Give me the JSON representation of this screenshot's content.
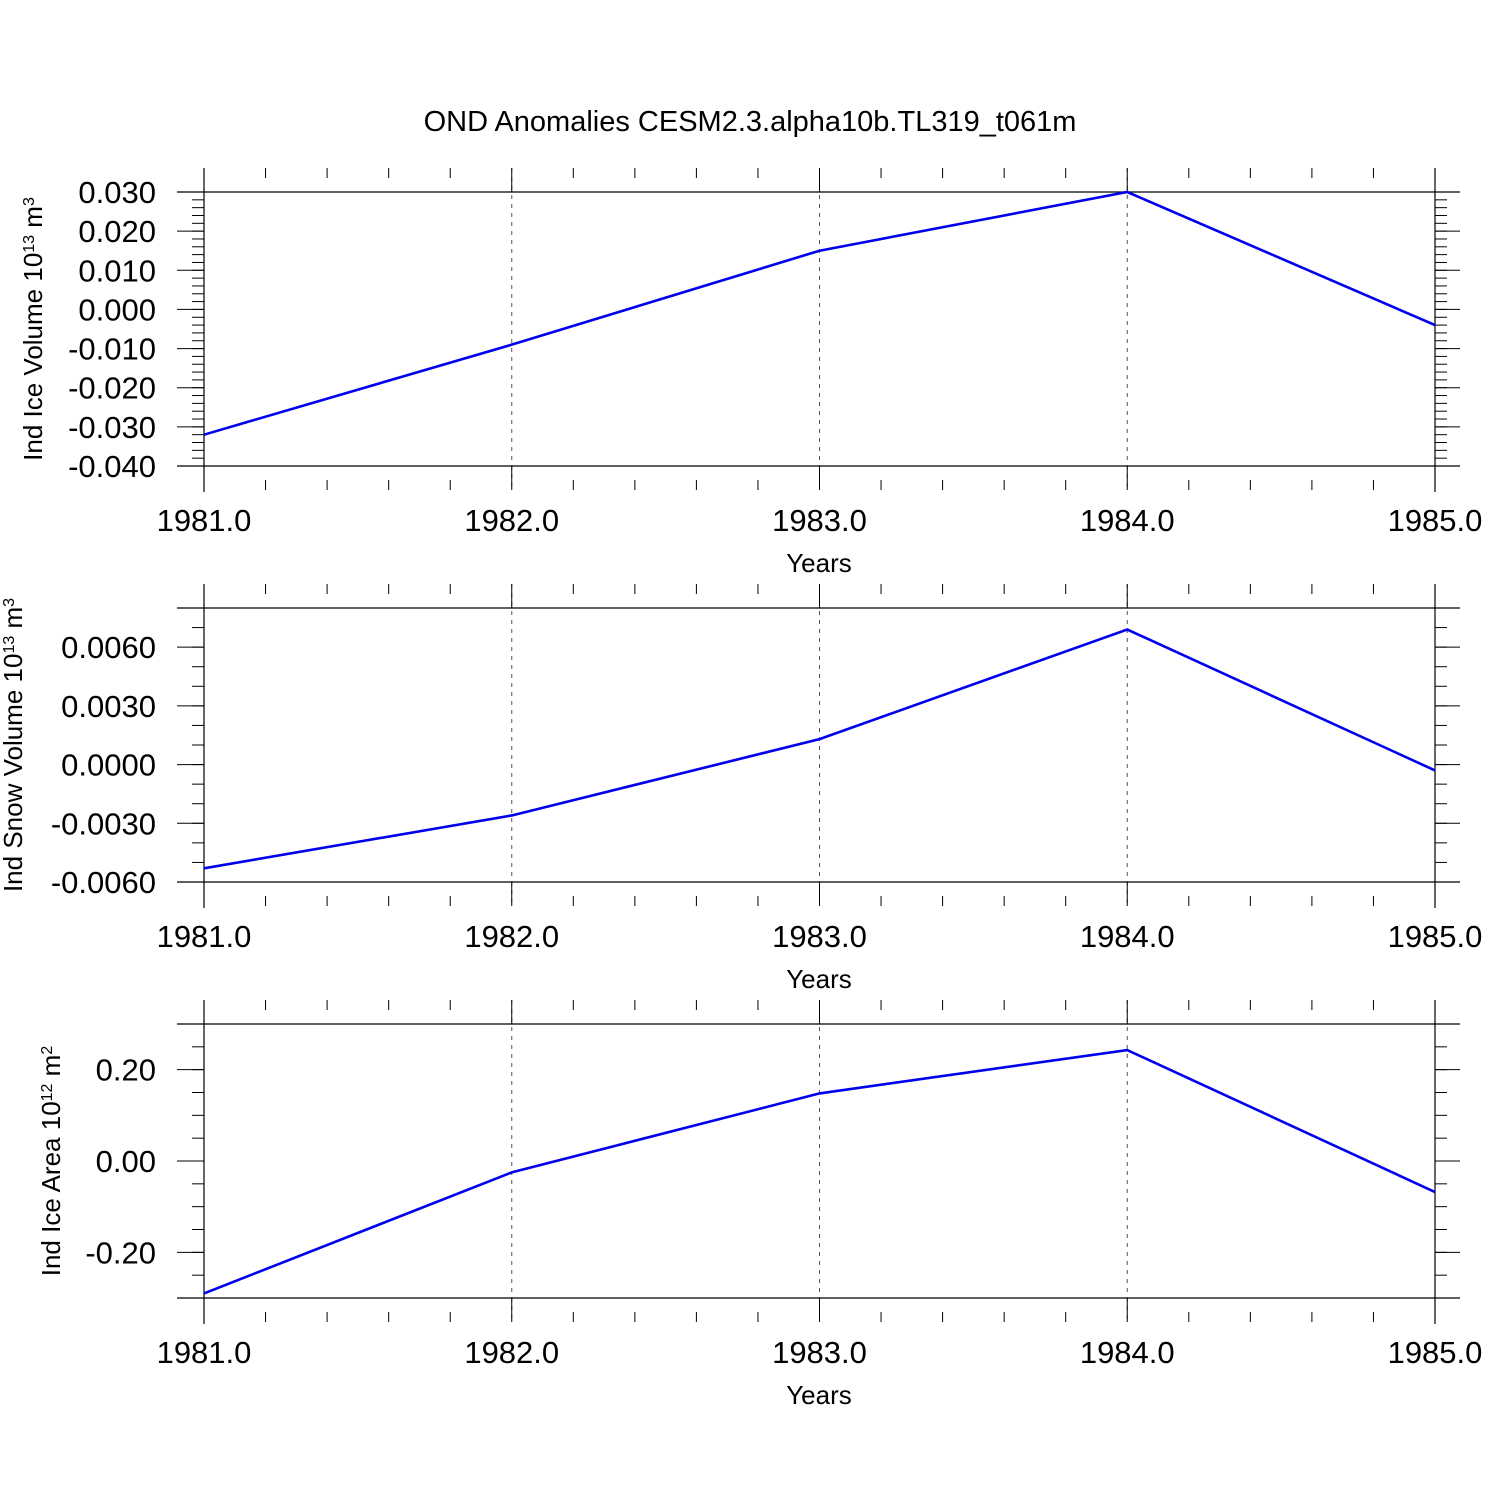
{
  "figure": {
    "title": "OND Anomalies CESM2.3.alpha10b.TL319_t061m"
  },
  "colors": {
    "series": "#0000ee",
    "frame": "#000000",
    "grid": "#555555"
  },
  "chart_data": [
    {
      "type": "line",
      "ylabel_main": "Ind Ice Volume 10",
      "ylabel_exp": "13",
      "ylabel_unit": " m",
      "ylabel_unit_exp": "3",
      "xlabel": "Years",
      "x": [
        1981,
        1982,
        1983,
        1984,
        1985
      ],
      "y": [
        -0.032,
        -0.009,
        0.015,
        0.03,
        -0.004
      ],
      "xlim": [
        1981,
        1985
      ],
      "ylim": [
        -0.04,
        0.03
      ],
      "xticks": [
        1981,
        1982,
        1983,
        1984,
        1985
      ],
      "xtick_labels": [
        "1981.0",
        "1982.0",
        "1983.0",
        "1984.0",
        "1985.0"
      ],
      "yticks": [
        -0.04,
        -0.03,
        -0.02,
        -0.01,
        0.0,
        0.01,
        0.02,
        0.03
      ],
      "ytick_labels": [
        "-0.040",
        "-0.030",
        "-0.020",
        "-0.010",
        "0.000",
        "0.010",
        "0.020",
        "0.030"
      ],
      "yminor_step": 0.002,
      "grid": "vertical dashed"
    },
    {
      "type": "line",
      "ylabel_main": "Ind Snow Volume 10",
      "ylabel_exp": "13",
      "ylabel_unit": " m",
      "ylabel_unit_exp": "3",
      "xlabel": "Years",
      "x": [
        1981,
        1982,
        1983,
        1984,
        1985
      ],
      "y": [
        -0.0053,
        -0.0026,
        0.0013,
        0.0069,
        -0.0003
      ],
      "xlim": [
        1981,
        1985
      ],
      "ylim": [
        -0.006,
        0.008
      ],
      "xticks": [
        1981,
        1982,
        1983,
        1984,
        1985
      ],
      "xtick_labels": [
        "1981.0",
        "1982.0",
        "1983.0",
        "1984.0",
        "1985.0"
      ],
      "yticks": [
        -0.006,
        -0.003,
        0.0,
        0.003,
        0.006
      ],
      "ytick_labels": [
        "-0.0060",
        "-0.0030",
        "0.0000",
        "0.0030",
        "0.0060"
      ],
      "yminor_step": 0.001,
      "grid": "vertical dashed"
    },
    {
      "type": "line",
      "ylabel_main": "Ind Ice Area 10",
      "ylabel_exp": "12",
      "ylabel_unit": " m",
      "ylabel_unit_exp": "2",
      "xlabel": "Years",
      "x": [
        1981,
        1982,
        1983,
        1984,
        1985
      ],
      "y": [
        -0.29,
        -0.025,
        0.148,
        0.243,
        -0.068
      ],
      "xlim": [
        1981,
        1985
      ],
      "ylim": [
        -0.3,
        0.3
      ],
      "xticks": [
        1981,
        1982,
        1983,
        1984,
        1985
      ],
      "xtick_labels": [
        "1981.0",
        "1982.0",
        "1983.0",
        "1984.0",
        "1985.0"
      ],
      "yticks": [
        -0.2,
        0.0,
        0.2
      ],
      "ytick_labels": [
        "-0.20",
        "0.00",
        "0.20"
      ],
      "yminor_step": 0.05,
      "grid": "vertical dashed"
    }
  ]
}
